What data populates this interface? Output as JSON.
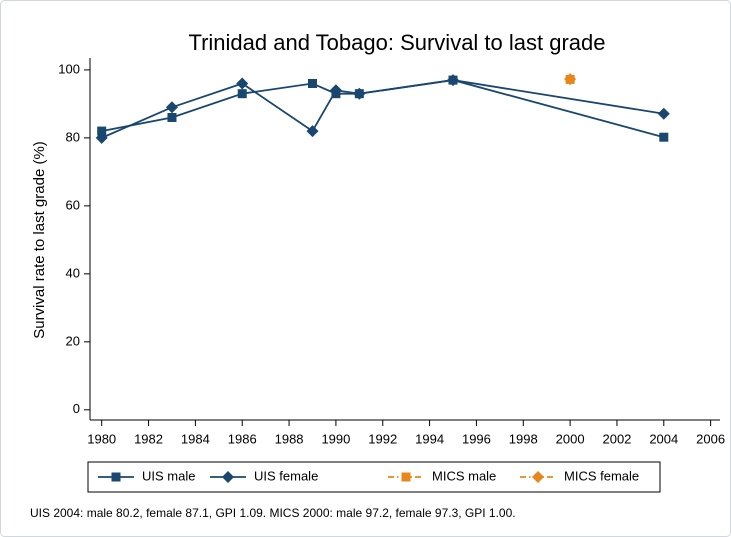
{
  "chart_data": {
    "type": "line",
    "title": "Trinidad and Tobago: Survival to last grade",
    "ylabel": "Survival rate to last grade (%)",
    "note": "UIS 2004: male 80.2, female 87.1, GPI 1.09. MICS 2000: male 97.2, female 97.3, GPI 1.00.",
    "series": [
      {
        "name": "UIS male",
        "color": "#1a476f",
        "marker": "square",
        "line_style": "solid",
        "x": [
          1980,
          1983,
          1986,
          1989,
          1990,
          1991,
          1995,
          2004
        ],
        "values": [
          82,
          86,
          93,
          96,
          93,
          93,
          97,
          80.2
        ]
      },
      {
        "name": "UIS female",
        "color": "#1a476f",
        "marker": "diamond",
        "line_style": "solid",
        "x": [
          1980,
          1983,
          1986,
          1989,
          1990,
          1991,
          1995,
          2004
        ],
        "values": [
          80,
          89,
          96,
          82,
          94,
          93,
          97,
          87.1
        ]
      },
      {
        "name": "MICS male",
        "color": "#e8861a",
        "marker": "square",
        "line_style": "dash-dot",
        "x": [
          2000
        ],
        "values": [
          97.2
        ]
      },
      {
        "name": "MICS female",
        "color": "#e8861a",
        "marker": "diamond",
        "line_style": "dash-dot",
        "x": [
          2000
        ],
        "values": [
          97.3
        ]
      }
    ],
    "xlim": [
      1979.5,
      2006.4
    ],
    "xticks": [
      1980,
      1982,
      1984,
      1986,
      1988,
      1990,
      1992,
      1994,
      1996,
      1998,
      2000,
      2002,
      2004,
      2006
    ],
    "ylim": [
      -3,
      103.5
    ],
    "yticks": [
      0,
      20,
      40,
      60,
      80,
      100
    ],
    "grid": false,
    "legend": "bottom"
  }
}
